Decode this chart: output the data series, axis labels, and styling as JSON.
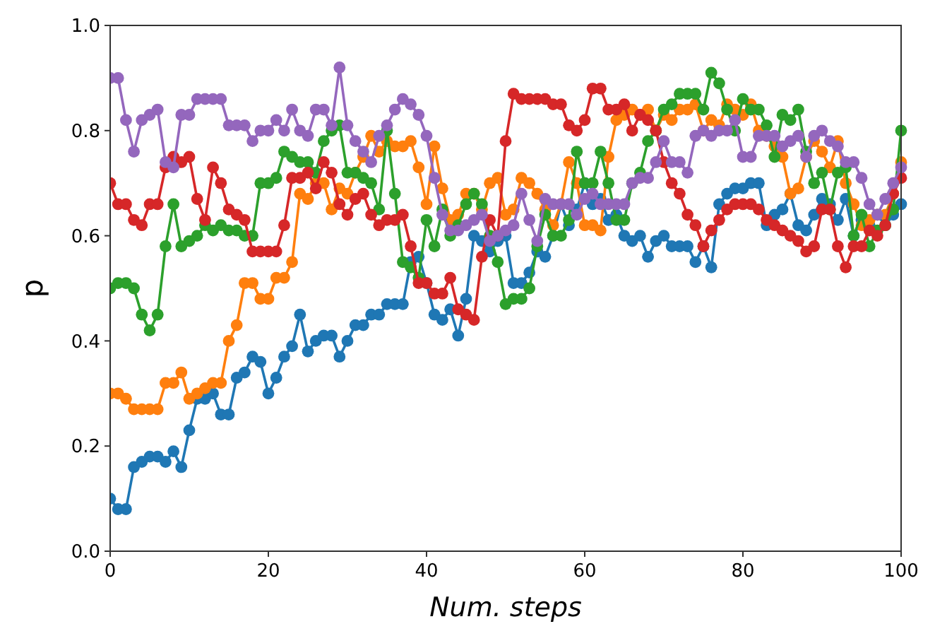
{
  "chart_data": {
    "type": "line",
    "xlabel": "Num. steps",
    "ylabel": "p",
    "marker": "circle",
    "line_style": "solid",
    "xlim": [
      0,
      100
    ],
    "xticks": [
      0,
      20,
      40,
      60,
      80,
      100
    ],
    "ylim": [
      0,
      1
    ],
    "yticks": [
      {
        "value": 0,
        "label": "0.0"
      },
      {
        "value": 0.2,
        "label": "0.2"
      },
      {
        "value": 0.4,
        "label": "0.4"
      },
      {
        "value": 0.6,
        "label": "0.6"
      },
      {
        "value": 0.8,
        "label": "0.8"
      },
      {
        "value": 1,
        "label": "1.0"
      }
    ],
    "x": [
      0,
      1,
      2,
      3,
      4,
      5,
      6,
      7,
      8,
      9,
      10,
      11,
      12,
      13,
      14,
      15,
      16,
      17,
      18,
      19,
      20,
      21,
      22,
      23,
      24,
      25,
      26,
      27,
      28,
      29,
      30,
      31,
      32,
      33,
      34,
      35,
      36,
      37,
      38,
      39,
      40,
      41,
      42,
      43,
      44,
      45,
      46,
      47,
      48,
      49,
      50,
      51,
      52,
      53,
      54,
      55,
      56,
      57,
      58,
      59,
      60,
      61,
      62,
      63,
      64,
      65,
      66,
      67,
      68,
      69,
      70,
      71,
      72,
      73,
      74,
      75,
      76,
      77,
      78,
      79,
      80,
      81,
      82,
      83,
      84,
      85,
      86,
      87,
      88,
      89,
      90,
      91,
      92,
      93,
      94,
      95,
      96,
      97,
      98,
      99,
      100
    ],
    "series": [
      {
        "color": "#1f77b4",
        "values": [
          0.1,
          0.08,
          0.08,
          0.16,
          0.17,
          0.18,
          0.18,
          0.17,
          0.19,
          0.16,
          0.23,
          0.29,
          0.29,
          0.3,
          0.26,
          0.26,
          0.33,
          0.34,
          0.37,
          0.36,
          0.3,
          0.33,
          0.37,
          0.39,
          0.45,
          0.38,
          0.4,
          0.41,
          0.41,
          0.37,
          0.4,
          0.43,
          0.43,
          0.45,
          0.45,
          0.47,
          0.47,
          0.47,
          0.55,
          0.56,
          0.51,
          0.45,
          0.44,
          0.46,
          0.41,
          0.48,
          0.6,
          0.59,
          0.57,
          0.59,
          0.6,
          0.51,
          0.51,
          0.53,
          0.57,
          0.56,
          0.6,
          0.66,
          0.62,
          0.65,
          0.7,
          0.66,
          0.67,
          0.63,
          0.64,
          0.6,
          0.59,
          0.6,
          0.56,
          0.59,
          0.6,
          0.58,
          0.58,
          0.58,
          0.55,
          0.58,
          0.54,
          0.66,
          0.68,
          0.69,
          0.69,
          0.7,
          0.7,
          0.62,
          0.64,
          0.65,
          0.68,
          0.62,
          0.61,
          0.64,
          0.67,
          0.66,
          0.63,
          0.67,
          0.6,
          0.63,
          0.62,
          0.64,
          0.62,
          0.64,
          0.66
        ]
      },
      {
        "color": "#ff7f0e",
        "values": [
          0.3,
          0.3,
          0.29,
          0.27,
          0.27,
          0.27,
          0.27,
          0.32,
          0.32,
          0.34,
          0.29,
          0.3,
          0.31,
          0.32,
          0.32,
          0.4,
          0.43,
          0.51,
          0.51,
          0.48,
          0.48,
          0.52,
          0.52,
          0.55,
          0.68,
          0.67,
          0.7,
          0.7,
          0.65,
          0.69,
          0.68,
          0.72,
          0.75,
          0.79,
          0.76,
          0.78,
          0.77,
          0.77,
          0.78,
          0.73,
          0.66,
          0.77,
          0.69,
          0.63,
          0.64,
          0.68,
          0.68,
          0.65,
          0.7,
          0.71,
          0.64,
          0.65,
          0.71,
          0.7,
          0.68,
          0.65,
          0.62,
          0.66,
          0.74,
          0.7,
          0.62,
          0.62,
          0.61,
          0.75,
          0.82,
          0.83,
          0.84,
          0.83,
          0.84,
          0.8,
          0.83,
          0.82,
          0.84,
          0.84,
          0.85,
          0.8,
          0.82,
          0.81,
          0.85,
          0.84,
          0.83,
          0.85,
          0.8,
          0.79,
          0.77,
          0.75,
          0.68,
          0.69,
          0.75,
          0.78,
          0.76,
          0.73,
          0.78,
          0.7,
          0.66,
          0.62,
          0.63,
          0.64,
          0.64,
          0.68,
          0.74
        ]
      },
      {
        "color": "#2ca02c",
        "values": [
          0.5,
          0.51,
          0.51,
          0.5,
          0.45,
          0.42,
          0.45,
          0.58,
          0.66,
          0.58,
          0.59,
          0.6,
          0.62,
          0.61,
          0.62,
          0.61,
          0.61,
          0.6,
          0.6,
          0.7,
          0.7,
          0.71,
          0.76,
          0.75,
          0.74,
          0.74,
          0.72,
          0.78,
          0.8,
          0.81,
          0.72,
          0.72,
          0.71,
          0.7,
          0.65,
          0.8,
          0.68,
          0.55,
          0.54,
          0.52,
          0.63,
          0.58,
          0.65,
          0.6,
          0.62,
          0.66,
          0.68,
          0.66,
          0.6,
          0.55,
          0.47,
          0.48,
          0.48,
          0.5,
          0.58,
          0.64,
          0.6,
          0.6,
          0.63,
          0.76,
          0.7,
          0.7,
          0.76,
          0.7,
          0.63,
          0.63,
          0.7,
          0.72,
          0.78,
          0.8,
          0.84,
          0.85,
          0.87,
          0.87,
          0.87,
          0.84,
          0.91,
          0.89,
          0.84,
          0.8,
          0.86,
          0.84,
          0.84,
          0.81,
          0.75,
          0.83,
          0.82,
          0.84,
          0.76,
          0.7,
          0.72,
          0.65,
          0.72,
          0.73,
          0.6,
          0.64,
          0.58,
          0.61,
          0.62,
          0.65,
          0.8
        ]
      },
      {
        "color": "#d62728",
        "values": [
          0.7,
          0.66,
          0.66,
          0.63,
          0.62,
          0.66,
          0.66,
          0.73,
          0.75,
          0.74,
          0.75,
          0.67,
          0.63,
          0.73,
          0.7,
          0.65,
          0.64,
          0.63,
          0.57,
          0.57,
          0.57,
          0.57,
          0.62,
          0.71,
          0.71,
          0.72,
          0.69,
          0.74,
          0.72,
          0.66,
          0.64,
          0.67,
          0.68,
          0.64,
          0.62,
          0.63,
          0.63,
          0.64,
          0.58,
          0.51,
          0.51,
          0.49,
          0.49,
          0.52,
          0.46,
          0.45,
          0.44,
          0.56,
          0.63,
          0.6,
          0.78,
          0.87,
          0.86,
          0.86,
          0.86,
          0.86,
          0.85,
          0.85,
          0.81,
          0.8,
          0.82,
          0.88,
          0.88,
          0.84,
          0.84,
          0.85,
          0.8,
          0.83,
          0.82,
          0.8,
          0.74,
          0.7,
          0.68,
          0.64,
          0.62,
          0.58,
          0.61,
          0.63,
          0.65,
          0.66,
          0.66,
          0.66,
          0.65,
          0.63,
          0.62,
          0.61,
          0.6,
          0.59,
          0.57,
          0.58,
          0.65,
          0.65,
          0.58,
          0.54,
          0.58,
          0.58,
          0.61,
          0.6,
          0.62,
          0.68,
          0.71
        ]
      },
      {
        "color": "#9467bd",
        "values": [
          0.9,
          0.9,
          0.82,
          0.76,
          0.82,
          0.83,
          0.84,
          0.74,
          0.73,
          0.83,
          0.83,
          0.86,
          0.86,
          0.86,
          0.86,
          0.81,
          0.81,
          0.81,
          0.78,
          0.8,
          0.8,
          0.82,
          0.8,
          0.84,
          0.8,
          0.79,
          0.84,
          0.84,
          0.81,
          0.92,
          0.81,
          0.78,
          0.76,
          0.74,
          0.79,
          0.81,
          0.84,
          0.86,
          0.85,
          0.83,
          0.79,
          0.71,
          0.64,
          0.61,
          0.61,
          0.62,
          0.63,
          0.64,
          0.59,
          0.6,
          0.61,
          0.62,
          0.68,
          0.63,
          0.59,
          0.67,
          0.66,
          0.66,
          0.66,
          0.64,
          0.67,
          0.68,
          0.66,
          0.66,
          0.66,
          0.66,
          0.7,
          0.71,
          0.71,
          0.74,
          0.78,
          0.74,
          0.74,
          0.72,
          0.79,
          0.8,
          0.79,
          0.8,
          0.8,
          0.82,
          0.75,
          0.75,
          0.79,
          0.79,
          0.79,
          0.77,
          0.78,
          0.79,
          0.75,
          0.79,
          0.8,
          0.78,
          0.77,
          0.74,
          0.74,
          0.71,
          0.66,
          0.64,
          0.67,
          0.7,
          0.73
        ]
      }
    ]
  }
}
